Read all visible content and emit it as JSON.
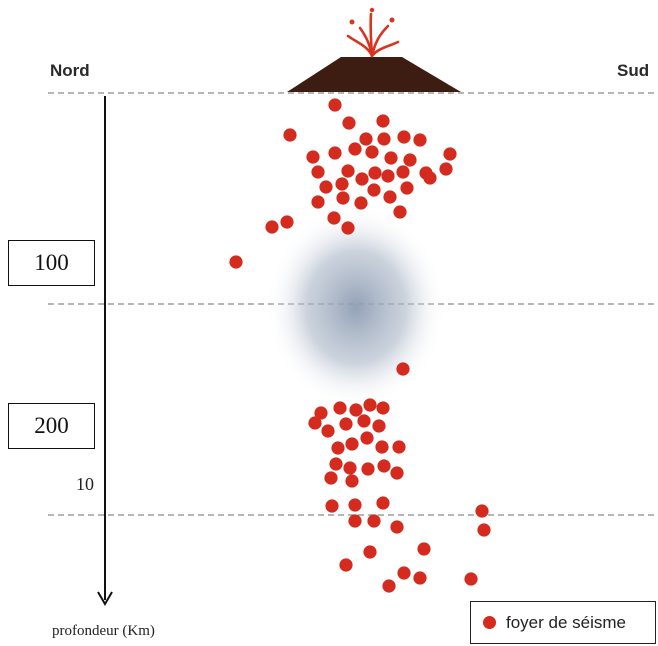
{
  "labels": {
    "north": "Nord",
    "south": "Sud",
    "depth_100": "100",
    "depth_200": "200",
    "depth_10": "10",
    "axis": "profondeur (Km)"
  },
  "legend": {
    "label": "foyer de séisme",
    "marker_color": "#d42b1e"
  },
  "colors": {
    "focus": "#d42b1e",
    "volcano": "#3d1c12",
    "lava": "#d8341f",
    "anomaly": "#8e9db3",
    "guide": "#8a8a8a"
  },
  "icons": {
    "volcano": "volcano-icon",
    "depth_axis": "down-arrow-icon"
  }
}
